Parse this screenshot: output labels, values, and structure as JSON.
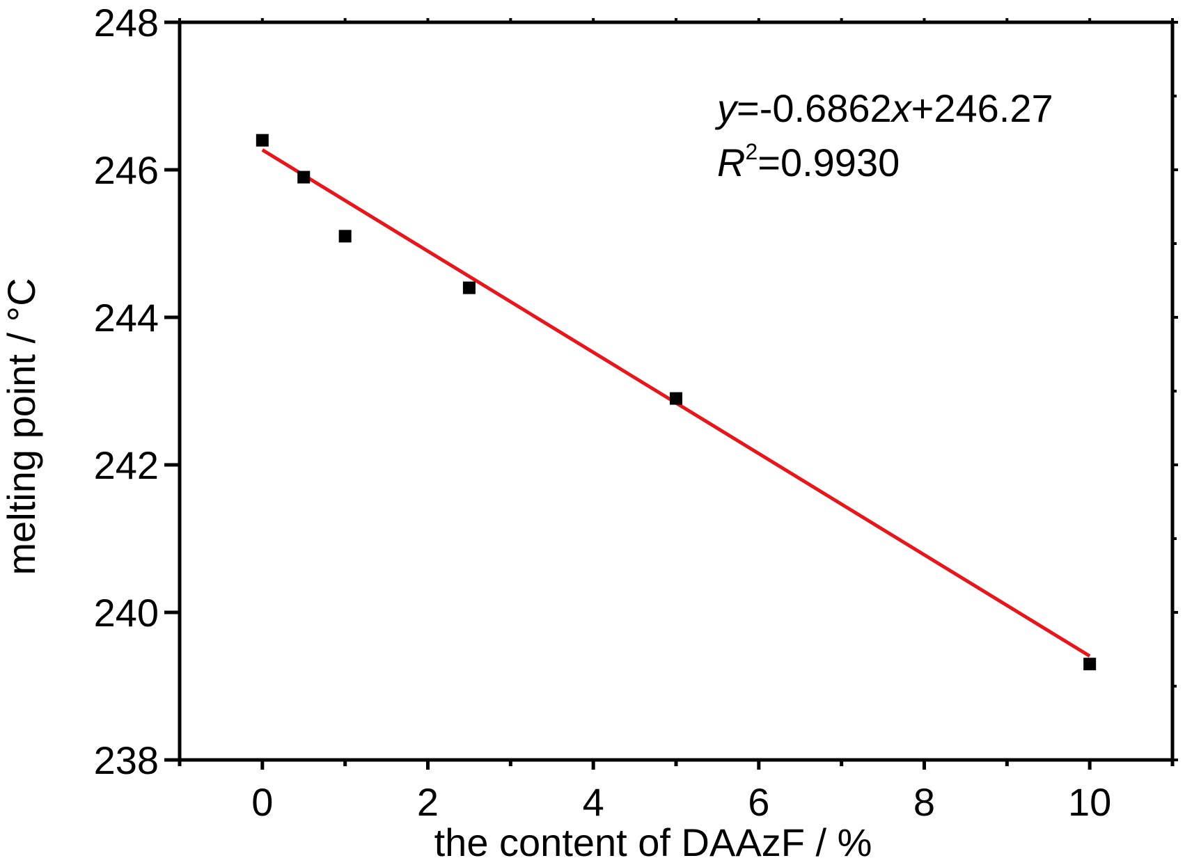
{
  "chart_data": {
    "type": "scatter",
    "xlabel": "the content of DAAzF / %",
    "ylabel": "melting point / °C",
    "xlim": [
      -1,
      11
    ],
    "ylim": [
      238,
      248
    ],
    "xticks": [
      "0",
      "2",
      "4",
      "6",
      "8",
      "10"
    ],
    "yticks": [
      "238",
      "240",
      "242",
      "244",
      "246",
      "248"
    ],
    "grid": false,
    "series": [
      {
        "type": "scatter",
        "marker_color": "#000000",
        "points": [
          {
            "x": 0,
            "y": 246.4
          },
          {
            "x": 0.5,
            "y": 245.9
          },
          {
            "x": 1,
            "y": 245.1
          },
          {
            "x": 2.5,
            "y": 244.4
          },
          {
            "x": 5,
            "y": 242.9
          },
          {
            "x": 10,
            "y": 239.3
          }
        ]
      },
      {
        "type": "line",
        "line_color": "#e8151b",
        "slope": -0.6862,
        "intercept": 246.27,
        "x_range": [
          0,
          10
        ]
      }
    ],
    "annotations": {
      "equation_y": "y",
      "equation_rest": "=-0.6862",
      "equation_x": "x",
      "equation_tail": "+246.27",
      "r2_r": "R",
      "r2_sup": "2",
      "r2_value": "=0.9930"
    }
  }
}
